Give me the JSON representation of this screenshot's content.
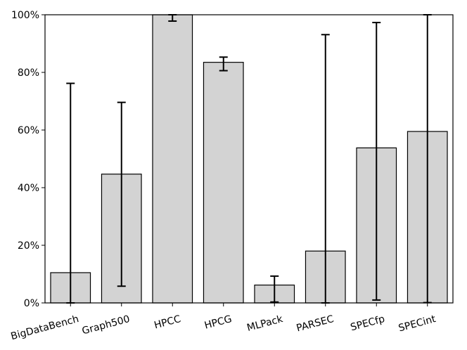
{
  "chart_data": {
    "type": "bar",
    "categories": [
      "BigDataBench",
      "Graph500",
      "HPCC",
      "HPCG",
      "MLPack",
      "PARSEC",
      "SPECfp",
      "SPECint"
    ],
    "series": [
      {
        "values": [
          10.5,
          44.7,
          100,
          83.5,
          6.2,
          18.0,
          53.8,
          59.5
        ],
        "error_low": [
          0,
          5.8,
          97.8,
          80.6,
          0.3,
          0,
          1.0,
          0.1
        ],
        "error_high": [
          76.2,
          69.6,
          100,
          85.3,
          9.3,
          93.1,
          97.3,
          100
        ]
      }
    ],
    "y_ticks": [
      "0%",
      "20%",
      "40%",
      "60%",
      "80%",
      "100%"
    ],
    "ylim": [
      0,
      100
    ],
    "x_tick_rotation": "rotated",
    "grid": false,
    "colors": {
      "bar_fill": "#d3d3d3",
      "bar_edge": "#000000",
      "error_bar": "#000000"
    }
  }
}
